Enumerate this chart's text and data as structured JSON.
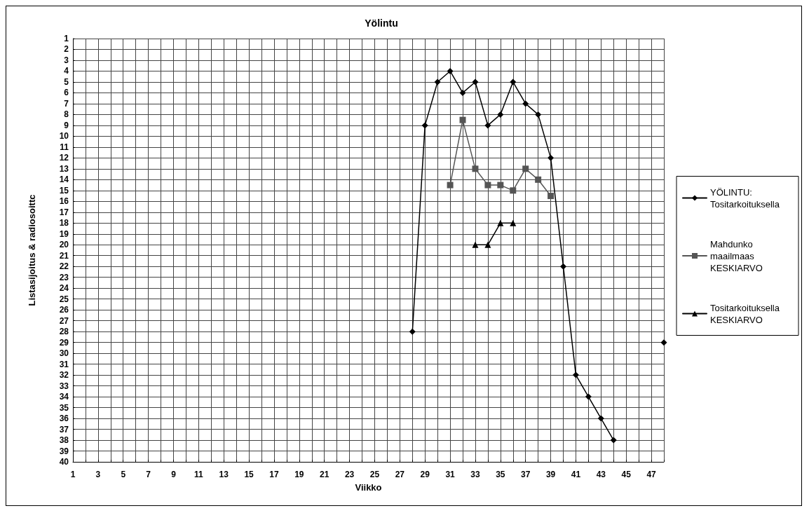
{
  "chart_data": {
    "type": "line",
    "title": "Yölintu",
    "xlabel": "Viikko",
    "ylabel": "Listasijoitus & radiosoittc",
    "xlim": [
      1,
      48
    ],
    "ylim": [
      40,
      1
    ],
    "xticks": [
      1,
      {
        "value": 2,
        "label": null
      },
      3,
      {
        "value": 4,
        "label": null
      },
      5,
      {
        "value": 6,
        "label": null
      },
      7,
      {
        "value": 8,
        "label": null
      },
      9,
      {
        "value": 10,
        "label": null
      },
      11,
      {
        "value": 12,
        "label": null
      },
      13,
      {
        "value": 14,
        "label": null
      },
      15,
      {
        "value": 16,
        "label": null
      },
      17,
      {
        "value": 18,
        "label": null
      },
      19,
      {
        "value": 20,
        "label": null
      },
      21,
      {
        "value": 22,
        "label": null
      },
      23,
      {
        "value": 24,
        "label": null
      },
      25,
      {
        "value": 26,
        "label": null
      },
      27,
      {
        "value": 28,
        "label": null
      },
      29,
      {
        "value": 30,
        "label": null
      },
      31,
      {
        "value": 32,
        "label": null
      },
      33,
      {
        "value": 34,
        "label": null
      },
      35,
      {
        "value": 36,
        "label": null
      },
      37,
      {
        "value": 38,
        "label": null
      },
      39,
      {
        "value": 40,
        "label": null
      },
      41,
      {
        "value": 42,
        "label": null
      },
      43,
      {
        "value": 44,
        "label": null
      },
      45,
      {
        "value": 46,
        "label": null
      },
      47,
      {
        "value": 48,
        "label": null
      }
    ],
    "yticks": [
      1,
      2,
      3,
      4,
      5,
      6,
      7,
      8,
      9,
      10,
      11,
      12,
      13,
      14,
      15,
      16,
      17,
      18,
      19,
      20,
      21,
      22,
      23,
      24,
      25,
      26,
      27,
      28,
      29,
      30,
      31,
      32,
      33,
      34,
      35,
      36,
      37,
      38,
      39,
      40
    ],
    "grid": true,
    "legend": "right",
    "line_style": "solid",
    "series": [
      {
        "name": "YÖLINTU: Tositarkoituksella",
        "color": "#000000",
        "marker": "diamond",
        "x": [
          28,
          29,
          30,
          31,
          32,
          33,
          34,
          35,
          36,
          37,
          38,
          39,
          40,
          41,
          42,
          43,
          44,
          45,
          46,
          47,
          48
        ],
        "values": [
          28,
          9,
          5,
          4,
          6,
          5,
          9,
          8,
          5,
          7,
          8,
          12,
          22,
          32,
          34,
          36,
          38,
          null,
          null,
          null,
          29
        ]
      },
      {
        "name": "Mahdunko maailmaas KESKIARVO",
        "color": "#555555",
        "marker": "square",
        "x": [
          31,
          32,
          33,
          34,
          35,
          36,
          37,
          38,
          39
        ],
        "values": [
          14.5,
          8.5,
          13,
          14.5,
          14.5,
          15,
          13,
          14,
          15.5
        ]
      },
      {
        "name": "Tositarkoituksella KESKIARVO",
        "color": "#000000",
        "marker": "triangle",
        "x": [
          33,
          34,
          35,
          36
        ],
        "values": [
          20,
          20,
          18,
          18
        ]
      }
    ]
  }
}
